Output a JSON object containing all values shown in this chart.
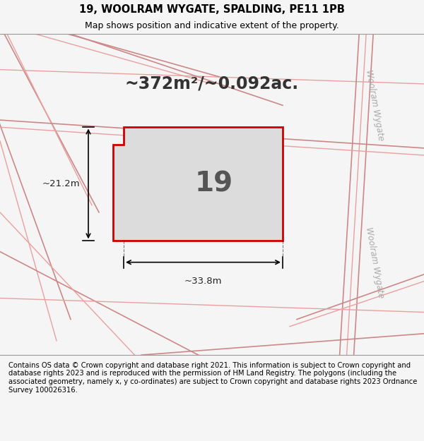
{
  "title_line1": "19, WOOLRAM WYGATE, SPALDING, PE11 1PB",
  "title_line2": "Map shows position and indicative extent of the property.",
  "footer_text": "Contains OS data © Crown copyright and database right 2021. This information is subject to Crown copyright and database rights 2023 and is reproduced with the permission of HM Land Registry. The polygons (including the associated geometry, namely x, y co-ordinates) are subject to Crown copyright and database rights 2023 Ordnance Survey 100026316.",
  "area_text": "~372m²/~0.092ac.",
  "plot_number": "19",
  "dim_width": "~33.8m",
  "dim_height": "~21.2m",
  "bg_color": "#f0eeee",
  "map_bg": "#e8e6e6",
  "plot_fill": "#dcdcdc",
  "plot_edge_color": "#cc0000",
  "road_line_color": "#e8a0a0",
  "road_line_color2": "#cc8888",
  "street_label": "Woolram Wygate",
  "title_fontsize": 10,
  "footer_fontsize": 7.5,
  "area_fontsize": 18,
  "plot_num_fontsize": 28
}
